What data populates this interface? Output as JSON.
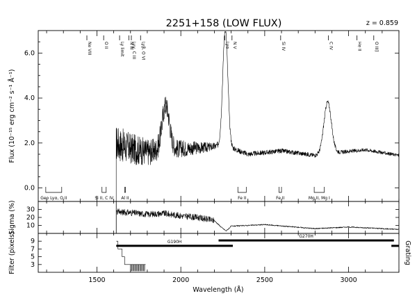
{
  "title": "2251+158 (LOW FLUX)",
  "redshift_label": "z = 0.859",
  "chart_data": [
    {
      "type": "line",
      "panel": "flux",
      "xlabel": "Wavelength (Å)",
      "ylabel": "Flux (10⁻¹⁵ erg cm⁻² s⁻¹ Å⁻¹)",
      "xlim": [
        1150,
        3300
      ],
      "ylim": [
        -0.6,
        7.0
      ],
      "xticks": [
        1500,
        2000,
        2500,
        3000
      ],
      "xtick_labels": [
        "1500",
        "2000",
        "2500",
        "3000"
      ],
      "yticks": [
        0.0,
        2.0,
        4.0,
        6.0
      ],
      "ytick_labels": [
        "0.0",
        "2.0",
        "4.0",
        "6.0"
      ],
      "grid": false,
      "continuum": [
        {
          "x": 1615,
          "y": 2.0
        },
        {
          "x": 1700,
          "y": 1.75
        },
        {
          "x": 1800,
          "y": 1.6
        },
        {
          "x": 2000,
          "y": 1.75
        },
        {
          "x": 2150,
          "y": 1.8
        },
        {
          "x": 2260,
          "y": 1.9
        },
        {
          "x": 2400,
          "y": 1.5
        },
        {
          "x": 2600,
          "y": 1.65
        },
        {
          "x": 2800,
          "y": 1.45
        },
        {
          "x": 2900,
          "y": 1.55
        },
        {
          "x": 3100,
          "y": 1.7
        },
        {
          "x": 3300,
          "y": 1.45
        }
      ],
      "emission_peaks": [
        {
          "center": 1910,
          "amp": 2.0,
          "width": 22
        },
        {
          "center": 2265,
          "amp": 5.2,
          "width": 15
        },
        {
          "center": 2875,
          "amp": 2.3,
          "width": 22
        }
      ],
      "noise_by_wavelength": [
        {
          "x": 1615,
          "noise": 0.8
        },
        {
          "x": 1900,
          "noise": 0.5
        },
        {
          "x": 2100,
          "noise": 0.28
        },
        {
          "x": 2250,
          "noise": 0.12
        },
        {
          "x": 3300,
          "noise": 0.07
        }
      ],
      "emission_line_ids": [
        {
          "x": 1440,
          "label": "Ne VIII"
        },
        {
          "x": 1540,
          "label": "O II"
        },
        {
          "x": 1635,
          "label": "Ly limit"
        },
        {
          "x": 1690,
          "label": "N III"
        },
        {
          "x": 1705,
          "label": "Lyγ, C III"
        },
        {
          "x": 1760,
          "label": "Lyβ, O VI"
        },
        {
          "x": 2262,
          "label": "Lyα"
        },
        {
          "x": 2305,
          "label": "N V"
        },
        {
          "x": 2595,
          "label": "Si IV"
        },
        {
          "x": 2880,
          "label": "C IV"
        },
        {
          "x": 3050,
          "label": "He II"
        },
        {
          "x": 3150,
          "label": "O III]"
        }
      ],
      "absorption_ids": [
        {
          "x1": 1195,
          "x2": 1290,
          "label": "Geo Lyα, O II"
        },
        {
          "x1": 1530,
          "x2": 1555,
          "label": "Si II, C IV"
        },
        {
          "x1": 1665,
          "x2": 1670,
          "label": "Al II"
        },
        {
          "x1": 2340,
          "x2": 2390,
          "label": "Fe II"
        },
        {
          "x1": 2585,
          "x2": 2600,
          "label": "Fe II"
        },
        {
          "x1": 2795,
          "x2": 2855,
          "label": "Mg II, Mg I"
        }
      ]
    },
    {
      "type": "line",
      "panel": "sigma",
      "ylabel": "Sigma (%)",
      "ylim": [
        0,
        40
      ],
      "yticks": [
        10,
        20,
        30
      ],
      "ytick_labels": [
        "10",
        "20",
        "30"
      ],
      "x": [
        1615,
        1700,
        1800,
        1900,
        2000,
        2100,
        2200,
        2240,
        2270,
        2300,
        2500,
        2800,
        3000,
        3300
      ],
      "values": [
        27,
        26,
        24,
        25,
        22,
        20,
        16,
        8,
        3,
        9,
        11,
        6,
        8,
        5
      ]
    },
    {
      "type": "line",
      "panel": "filter",
      "ylabel": "Filter (pixels)",
      "right_label": "Grating",
      "ylim": [
        1,
        11
      ],
      "yticks": [
        3,
        5,
        7,
        9
      ],
      "ytick_labels": [
        "3",
        "5",
        "7",
        "9"
      ],
      "filter_steps": [
        {
          "x": 1615,
          "y": 9
        },
        {
          "x": 1625,
          "y": 7
        },
        {
          "x": 1650,
          "y": 5
        },
        {
          "x": 1665,
          "y": 3
        },
        {
          "x": 1700,
          "y": 3
        },
        {
          "x": 1790,
          "y": 3
        }
      ],
      "gratings": [
        {
          "name": "G190H",
          "x1": 1615,
          "x2": 2310,
          "y": 7.8
        },
        {
          "name": "G270H",
          "x1": 2225,
          "x2": 3270,
          "y": 9.2
        },
        {
          "name": "",
          "x1": 3255,
          "x2": 3300,
          "y": 7.8
        }
      ]
    }
  ]
}
